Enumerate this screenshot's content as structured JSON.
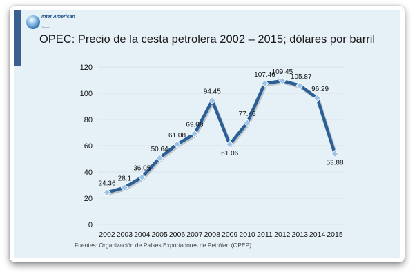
{
  "logo": {
    "name": "Inter American",
    "subtext": "Trends"
  },
  "source_note": "Fuentes: Organización de Países Exportadores de Petróleo (OPEP)",
  "colors": {
    "line": "#2c5f95",
    "marker": "#9cc3e8",
    "panel": "#e6f1f7",
    "accent_bar": "#3b5f8f"
  },
  "chart_data": {
    "type": "line",
    "title": "OPEC: Precio de la cesta petrolera 2002 – 2015; dólares por barril",
    "xlabel": "",
    "ylabel": "",
    "categories": [
      "2002",
      "2003",
      "2004",
      "2005",
      "2006",
      "2007",
      "2008",
      "2009",
      "2010",
      "2011",
      "2012",
      "2013",
      "2014",
      "2015"
    ],
    "series": [
      {
        "values": [
          24.36,
          28.1,
          36.05,
          50.64,
          61.08,
          69.08,
          94.45,
          61.06,
          77.45,
          107.46,
          109.45,
          105.87,
          96.29,
          53.88
        ],
        "labels": [
          "24.36",
          "28.1",
          "36.05",
          "50.64",
          "61.08",
          "69.08",
          "94.45",
          "61.06",
          "77.45",
          "107.46",
          "109.45",
          "105.87",
          "96.29",
          "53.88"
        ]
      }
    ],
    "ylim": [
      0,
      120
    ],
    "yticks": [
      0,
      20,
      40,
      60,
      80,
      100,
      120
    ],
    "grid": true,
    "legend": "none"
  }
}
